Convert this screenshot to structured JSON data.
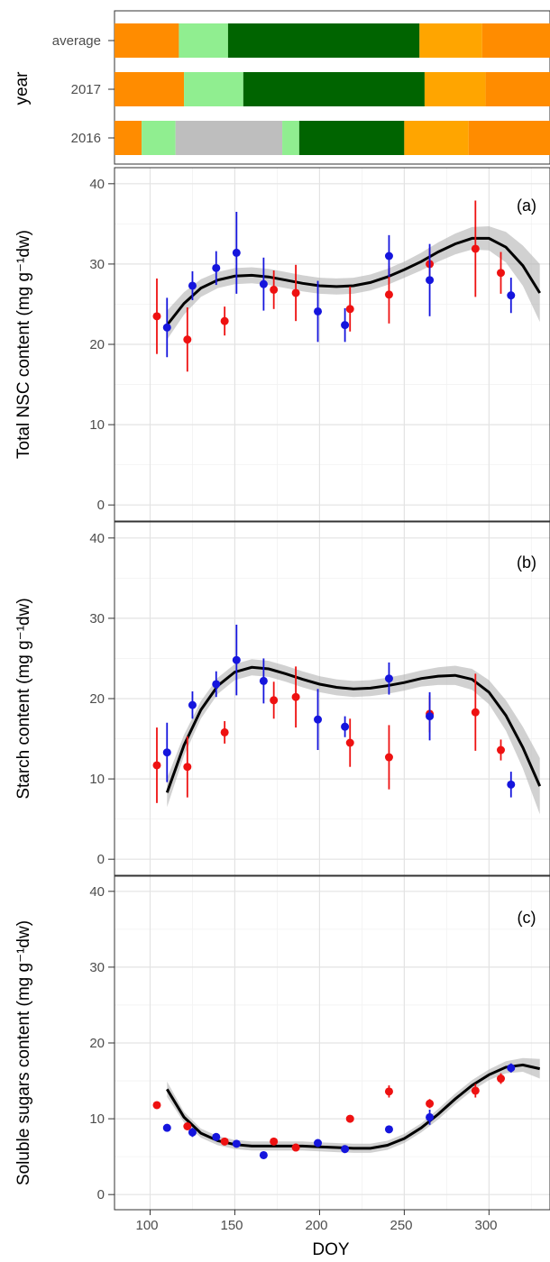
{
  "chart_data": [
    {
      "type": "timeline",
      "ylabel": "year",
      "x_domain": [
        79,
        336
      ],
      "rows": [
        {
          "label": "average",
          "segments": [
            {
              "start": 79,
              "end": 117,
              "color": "#ff8c00"
            },
            {
              "start": 117,
              "end": 146,
              "color": "#90ee90"
            },
            {
              "start": 146,
              "end": 259,
              "color": "#006400"
            },
            {
              "start": 259,
              "end": 296,
              "color": "#ffa500"
            },
            {
              "start": 296,
              "end": 336,
              "color": "#ff8c00"
            }
          ]
        },
        {
          "label": "2017",
          "segments": [
            {
              "start": 79,
              "end": 120,
              "color": "#ff8c00"
            },
            {
              "start": 120,
              "end": 155,
              "color": "#90ee90"
            },
            {
              "start": 155,
              "end": 262,
              "color": "#006400"
            },
            {
              "start": 262,
              "end": 298,
              "color": "#ffa500"
            },
            {
              "start": 298,
              "end": 336,
              "color": "#ff8c00"
            }
          ]
        },
        {
          "label": "2016",
          "segments": [
            {
              "start": 79,
              "end": 95,
              "color": "#ff8c00"
            },
            {
              "start": 95,
              "end": 115,
              "color": "#90ee90"
            },
            {
              "start": 115,
              "end": 178,
              "color": "#bebebe"
            },
            {
              "start": 178,
              "end": 188,
              "color": "#90ee90"
            },
            {
              "start": 188,
              "end": 250,
              "color": "#006400"
            },
            {
              "start": 250,
              "end": 288,
              "color": "#ffa500"
            },
            {
              "start": 288,
              "end": 336,
              "color": "#ff8c00"
            }
          ]
        }
      ]
    },
    {
      "type": "scatter",
      "tag": "(a)",
      "ylabel": "Total NSC content (mg g⁻¹dw)",
      "ylim": [
        -2,
        42
      ],
      "yticks": [
        0,
        10,
        20,
        30,
        40
      ],
      "series": [
        {
          "color": "#ee1111",
          "x": [
            104,
            122,
            144,
            173,
            186,
            218,
            241,
            265,
            292,
            307
          ],
          "y": [
            23.5,
            20.6,
            22.9,
            26.8,
            26.4,
            24.4,
            26.2,
            30.0,
            31.9,
            28.9
          ],
          "err": [
            4.7,
            4.0,
            1.8,
            2.4,
            3.5,
            2.8,
            3.6,
            2.0,
            6.0,
            2.6
          ]
        },
        {
          "color": "#1515dd",
          "x": [
            110,
            125,
            139,
            151,
            167,
            199,
            215,
            241,
            265,
            313
          ],
          "y": [
            22.1,
            27.3,
            29.5,
            31.4,
            27.5,
            24.1,
            22.4,
            31.0,
            28.0,
            26.1
          ],
          "err": [
            3.7,
            1.8,
            2.1,
            5.1,
            3.3,
            3.8,
            2.1,
            2.6,
            4.5,
            2.2
          ]
        }
      ],
      "fit": {
        "x": [
          110,
          120,
          130,
          140,
          150,
          160,
          170,
          180,
          190,
          200,
          210,
          220,
          230,
          240,
          250,
          260,
          270,
          280,
          290,
          300,
          310,
          320,
          330
        ],
        "y": [
          22.4,
          25.1,
          27.0,
          28.0,
          28.5,
          28.6,
          28.4,
          28.0,
          27.6,
          27.3,
          27.2,
          27.3,
          27.7,
          28.4,
          29.3,
          30.3,
          31.5,
          32.5,
          33.2,
          33.2,
          32.1,
          29.8,
          26.4
        ],
        "band": [
          1.8,
          1.4,
          1.1,
          1.0,
          1.0,
          1.0,
          1.0,
          1.0,
          1.0,
          1.0,
          1.0,
          1.0,
          1.0,
          1.0,
          1.0,
          1.1,
          1.2,
          1.3,
          1.4,
          1.5,
          1.9,
          2.5,
          3.6
        ]
      }
    },
    {
      "type": "scatter",
      "tag": "(b)",
      "ylabel": "Starch content (mg g⁻¹dw)",
      "ylim": [
        -2,
        42
      ],
      "yticks": [
        0,
        10,
        20,
        30,
        40
      ],
      "series": [
        {
          "color": "#ee1111",
          "x": [
            104,
            122,
            144,
            173,
            186,
            218,
            241,
            265,
            292,
            307
          ],
          "y": [
            11.7,
            11.5,
            15.8,
            19.8,
            20.2,
            14.5,
            12.7,
            18.1,
            18.3,
            13.6
          ],
          "err": [
            4.7,
            3.8,
            1.4,
            2.3,
            3.8,
            3.0,
            4.0,
            2.3,
            4.8,
            1.3
          ]
        },
        {
          "color": "#1515dd",
          "x": [
            110,
            125,
            139,
            151,
            167,
            199,
            215,
            241,
            265,
            313
          ],
          "y": [
            13.3,
            19.2,
            21.8,
            24.8,
            22.2,
            17.4,
            16.5,
            22.5,
            17.8,
            9.3
          ],
          "err": [
            3.7,
            1.7,
            1.6,
            4.4,
            2.8,
            3.8,
            1.3,
            2.0,
            3.0,
            1.6
          ]
        }
      ],
      "fit": {
        "x": [
          110,
          120,
          130,
          140,
          150,
          160,
          170,
          180,
          190,
          200,
          210,
          220,
          230,
          240,
          250,
          260,
          270,
          280,
          290,
          300,
          310,
          320,
          330
        ],
        "y": [
          8.3,
          14.2,
          18.6,
          21.6,
          23.3,
          23.9,
          23.7,
          23.1,
          22.4,
          21.8,
          21.4,
          21.2,
          21.3,
          21.6,
          22.0,
          22.5,
          22.8,
          22.9,
          22.4,
          20.8,
          17.9,
          13.9,
          9.1
        ],
        "band": [
          1.8,
          1.3,
          1.1,
          1.0,
          1.0,
          1.0,
          1.0,
          1.0,
          1.0,
          1.0,
          1.0,
          1.0,
          1.0,
          1.0,
          1.0,
          1.0,
          1.1,
          1.2,
          1.3,
          1.5,
          1.9,
          2.6,
          3.5
        ]
      }
    },
    {
      "type": "scatter",
      "tag": "(c)",
      "ylabel": "Soluble sugars content (mg g⁻¹dw)",
      "xlabel": "DOY",
      "ylim": [
        -2,
        42
      ],
      "yticks": [
        0,
        10,
        20,
        30,
        40
      ],
      "xticks": [
        100,
        150,
        200,
        250,
        300
      ],
      "xlim": [
        79,
        336
      ],
      "series": [
        {
          "color": "#ee1111",
          "x": [
            104,
            122,
            144,
            173,
            186,
            218,
            241,
            265,
            292,
            307
          ],
          "y": [
            11.8,
            9.0,
            7.0,
            7.0,
            6.2,
            10.0,
            13.6,
            12.0,
            13.7,
            15.3
          ],
          "err": [
            0,
            0,
            0,
            0,
            0,
            0,
            0.8,
            0.6,
            0.9,
            0.7
          ]
        },
        {
          "color": "#1515dd",
          "x": [
            110,
            125,
            139,
            151,
            167,
            199,
            215,
            241,
            265,
            313
          ],
          "y": [
            8.8,
            8.2,
            7.6,
            6.7,
            5.2,
            6.8,
            6.0,
            8.6,
            10.2,
            16.7
          ],
          "err": [
            0,
            0.6,
            0.4,
            0,
            0,
            0,
            0,
            0,
            1.0,
            0.6
          ]
        }
      ],
      "fit": {
        "x": [
          110,
          120,
          130,
          140,
          150,
          160,
          170,
          180,
          190,
          200,
          210,
          220,
          230,
          240,
          250,
          260,
          270,
          280,
          290,
          300,
          310,
          320,
          330
        ],
        "y": [
          13.9,
          10.2,
          8.1,
          7.1,
          6.6,
          6.4,
          6.4,
          6.4,
          6.4,
          6.3,
          6.2,
          6.1,
          6.1,
          6.5,
          7.4,
          8.8,
          10.6,
          12.6,
          14.4,
          15.8,
          16.8,
          17.1,
          16.6
        ],
        "band": [
          1.0,
          0.7,
          0.6,
          0.6,
          0.6,
          0.6,
          0.6,
          0.6,
          0.6,
          0.6,
          0.6,
          0.6,
          0.6,
          0.6,
          0.6,
          0.6,
          0.7,
          0.7,
          0.7,
          0.7,
          0.8,
          0.9,
          1.3
        ]
      }
    }
  ]
}
